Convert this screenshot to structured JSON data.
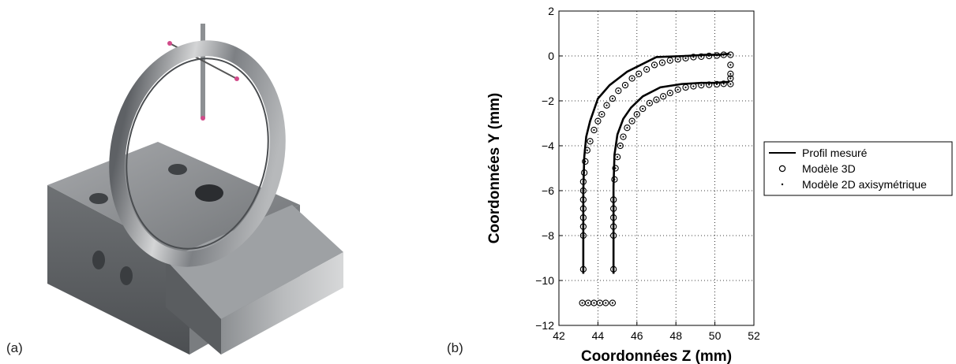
{
  "panels": {
    "a_label": "(a)",
    "b_label": "(b)"
  },
  "photo": {
    "description_icon": "measurement-fixture-ring-photo"
  },
  "chart_data": {
    "type": "line",
    "title": "",
    "xlabel": "Coordonnées Z (mm)",
    "ylabel": "Coordonnées Y (mm)",
    "xlim": [
      42,
      52
    ],
    "ylim": [
      -12,
      2
    ],
    "xticks": [
      42,
      44,
      46,
      48,
      50,
      52
    ],
    "yticks": [
      2,
      0,
      -2,
      -4,
      -6,
      -8,
      -10,
      -12
    ],
    "grid": true,
    "legend_position": "right",
    "series": [
      {
        "name": "Profil mesuré",
        "style": "solid-line",
        "segments": [
          {
            "x": [
              43.25,
              43.25,
              43.3,
              43.4,
              43.6,
              44.0,
              44.6,
              45.5,
              47.0,
              48.5,
              49.5,
              50.2,
              50.75
            ],
            "y": [
              -9.7,
              -6.0,
              -4.5,
              -3.6,
              -2.9,
              -1.9,
              -1.3,
              -0.7,
              -0.05,
              0.0,
              0.05,
              0.05,
              0.1
            ]
          },
          {
            "x": [
              44.8,
              44.8,
              44.85,
              45.0,
              45.3,
              45.7,
              46.3,
              47.2,
              48.3,
              49.3,
              50.0,
              50.75
            ],
            "y": [
              -9.7,
              -5.8,
              -4.4,
              -3.5,
              -2.8,
              -2.3,
              -1.8,
              -1.4,
              -1.25,
              -1.2,
              -1.2,
              -1.15
            ]
          }
        ]
      },
      {
        "name": "Modèle 3D",
        "style": "open-circle",
        "x": [
          43.25,
          43.25,
          43.25,
          43.25,
          43.25,
          43.25,
          43.25,
          43.25,
          43.3,
          43.35,
          43.45,
          43.6,
          43.8,
          44.0,
          44.2,
          44.45,
          44.75,
          45.05,
          45.4,
          45.75,
          46.1,
          46.5,
          46.9,
          47.3,
          47.7,
          48.1,
          48.5,
          48.9,
          49.3,
          49.7,
          50.1,
          50.45,
          50.8,
          50.8,
          50.8,
          50.8,
          50.8,
          44.8,
          44.8,
          44.8,
          44.8,
          44.8,
          44.8,
          44.85,
          44.9,
          45.0,
          45.15,
          45.3,
          45.5,
          45.75,
          46.0,
          46.3,
          46.65,
          47.0,
          47.35,
          47.7,
          48.1,
          48.5,
          48.9,
          49.3,
          49.7,
          50.1,
          50.45,
          43.2,
          43.5,
          43.8,
          44.1,
          44.4,
          44.75
        ],
        "y": [
          -9.5,
          -8.0,
          -7.6,
          -7.2,
          -6.8,
          -6.4,
          -6.0,
          -5.6,
          -5.2,
          -4.7,
          -4.2,
          -3.8,
          -3.3,
          -2.9,
          -2.6,
          -2.2,
          -1.9,
          -1.55,
          -1.3,
          -1.0,
          -0.8,
          -0.6,
          -0.4,
          -0.3,
          -0.2,
          -0.15,
          -0.1,
          -0.05,
          -0.03,
          0.0,
          0.02,
          0.05,
          0.05,
          -0.4,
          -0.8,
          -1.0,
          -1.25,
          -9.5,
          -8.0,
          -7.6,
          -7.2,
          -6.8,
          -6.4,
          -5.5,
          -5.0,
          -4.5,
          -4.0,
          -3.6,
          -3.2,
          -2.9,
          -2.6,
          -2.35,
          -2.1,
          -1.95,
          -1.8,
          -1.65,
          -1.5,
          -1.4,
          -1.35,
          -1.3,
          -1.28,
          -1.26,
          -1.24,
          -11.0,
          -11.0,
          -11.0,
          -11.0,
          -11.0,
          -11.0
        ]
      },
      {
        "name": "Modèle 2D axisymétrique",
        "style": "dot",
        "same_points_as": "Modèle 3D"
      }
    ]
  }
}
